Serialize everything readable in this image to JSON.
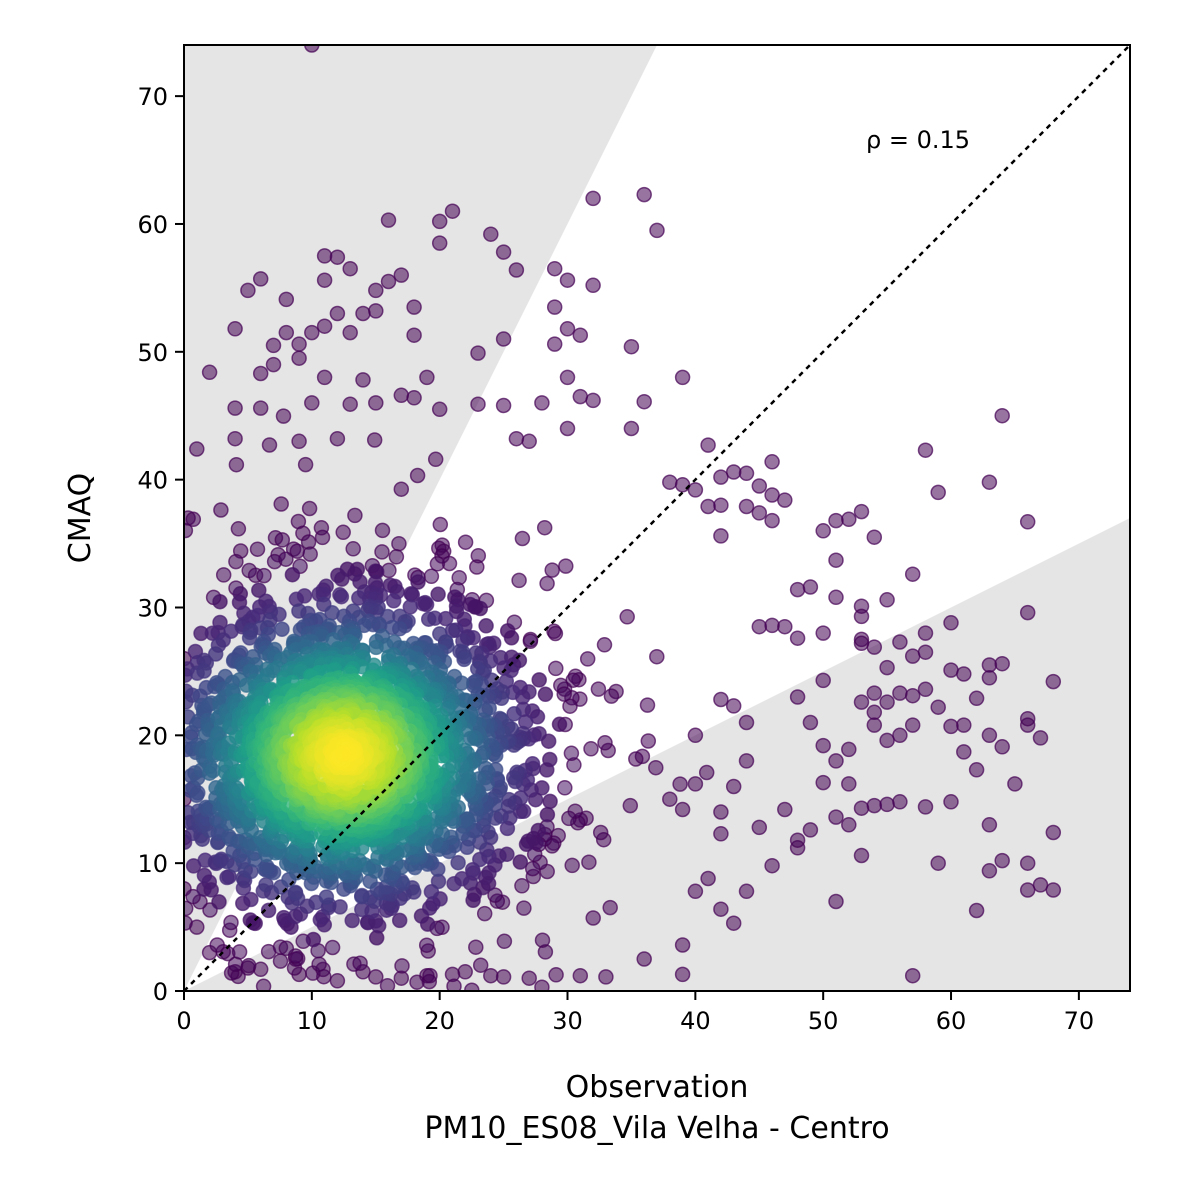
{
  "chart_data": {
    "type": "scatter",
    "xlabel": "Observation",
    "xlabel_sub": "PM10_ES08_Vila Velha - Centro",
    "ylabel": "CMAQ",
    "annotation": "ρ = 0.15",
    "xlim": [
      0,
      74
    ],
    "ylim": [
      0,
      74
    ],
    "xticks": [
      "0",
      "10",
      "20",
      "30",
      "40",
      "50",
      "60",
      "70"
    ],
    "yticks": [
      "0",
      "10",
      "20",
      "30",
      "40",
      "50",
      "60",
      "70"
    ],
    "reference_line": "1:1",
    "shaded_regions": "factor-of-2 band outside, grey",
    "colormap": "viridis (point density)",
    "grid": false,
    "points_outlier": [
      [
        10,
        74
      ],
      [
        36,
        62.3
      ],
      [
        32,
        62
      ],
      [
        37,
        59.5
      ],
      [
        21,
        61
      ],
      [
        20,
        60.2
      ],
      [
        20,
        58.5
      ],
      [
        16,
        60.3
      ],
      [
        24,
        59.2
      ],
      [
        25,
        57.8
      ],
      [
        11,
        57.5
      ],
      [
        12,
        57.4
      ],
      [
        13,
        56.5
      ],
      [
        6,
        55.7
      ],
      [
        5,
        54.8
      ],
      [
        11,
        55.6
      ],
      [
        17,
        56
      ],
      [
        16,
        55.5
      ],
      [
        15,
        54.8
      ],
      [
        26,
        56.4
      ],
      [
        29,
        56.5
      ],
      [
        30,
        55.6
      ],
      [
        32,
        55.2
      ],
      [
        8,
        54.1
      ],
      [
        18,
        53.5
      ],
      [
        12,
        53
      ],
      [
        14,
        53
      ],
      [
        15,
        53.2
      ],
      [
        29,
        53.5
      ],
      [
        4,
        51.8
      ],
      [
        8,
        51.5
      ],
      [
        10,
        51.5
      ],
      [
        11,
        52
      ],
      [
        9,
        50.6
      ],
      [
        7,
        50.5
      ],
      [
        13,
        51.5
      ],
      [
        18,
        51.3
      ],
      [
        30,
        51.8
      ],
      [
        31,
        51.3
      ],
      [
        25,
        51
      ],
      [
        29,
        50.6
      ],
      [
        35,
        50.4
      ],
      [
        2,
        48.4
      ],
      [
        6,
        48.3
      ],
      [
        7,
        49
      ],
      [
        9,
        49.5
      ],
      [
        11,
        48
      ],
      [
        23,
        49.9
      ],
      [
        30,
        48
      ],
      [
        39,
        48
      ],
      [
        14,
        47.8
      ],
      [
        19,
        48
      ],
      [
        31,
        46.5
      ],
      [
        32,
        46.2
      ],
      [
        36,
        46.1
      ],
      [
        4,
        45.6
      ],
      [
        6,
        45.6
      ],
      [
        10,
        46
      ],
      [
        13,
        45.9
      ],
      [
        15,
        46
      ],
      [
        17,
        46.6
      ],
      [
        18,
        46.4
      ],
      [
        20,
        45.5
      ],
      [
        23,
        45.9
      ],
      [
        25,
        45.8
      ],
      [
        28,
        46
      ],
      [
        35,
        44
      ],
      [
        1,
        42.4
      ],
      [
        4,
        43.2
      ],
      [
        9,
        43
      ],
      [
        12,
        43.2
      ],
      [
        26,
        43.2
      ],
      [
        27,
        43
      ],
      [
        30,
        44
      ],
      [
        39,
        39.6
      ],
      [
        41,
        42.7
      ],
      [
        44,
        40.5
      ],
      [
        46,
        41.4
      ],
      [
        45,
        39.5
      ],
      [
        42,
        40.2
      ],
      [
        43,
        40.6
      ],
      [
        40,
        39.2
      ],
      [
        38,
        39.8
      ],
      [
        41,
        37.9
      ],
      [
        42,
        35.6
      ],
      [
        42,
        38
      ],
      [
        44,
        37.9
      ],
      [
        45,
        37.4
      ],
      [
        46,
        38.8
      ],
      [
        47,
        38.4
      ],
      [
        46,
        36.8
      ],
      [
        50,
        36
      ],
      [
        52,
        36.9
      ],
      [
        53,
        37.5
      ],
      [
        51,
        36.8
      ],
      [
        54,
        35.5
      ],
      [
        51,
        33.7
      ],
      [
        57,
        32.6
      ],
      [
        49,
        31.6
      ],
      [
        48,
        31.4
      ],
      [
        51,
        30.8
      ],
      [
        55,
        30.6
      ],
      [
        53,
        30.1
      ],
      [
        53,
        29.3
      ],
      [
        46,
        28.6
      ],
      [
        45,
        28.5
      ],
      [
        47,
        28.5
      ],
      [
        48,
        27.6
      ],
      [
        50,
        28
      ],
      [
        53,
        27.5
      ],
      [
        53,
        27.2
      ],
      [
        54,
        26.9
      ],
      [
        56,
        27.3
      ],
      [
        58,
        28
      ],
      [
        60,
        28.8
      ],
      [
        57,
        26.2
      ],
      [
        58,
        26.5
      ],
      [
        61,
        24.8
      ],
      [
        62,
        22.9
      ],
      [
        60,
        25.1
      ],
      [
        63,
        25.5
      ],
      [
        64,
        25.6
      ],
      [
        63,
        24.5
      ],
      [
        68,
        24.2
      ],
      [
        55,
        25.3
      ],
      [
        54,
        23.3
      ],
      [
        56,
        23.3
      ],
      [
        55,
        22.6
      ],
      [
        57,
        23.1
      ],
      [
        53,
        22.6
      ],
      [
        54,
        21.8
      ],
      [
        57,
        20.8
      ],
      [
        54,
        20.8
      ],
      [
        55,
        19.6
      ],
      [
        56,
        20
      ],
      [
        58,
        23.6
      ],
      [
        59,
        22.2
      ],
      [
        60,
        20.7
      ],
      [
        61,
        20.8
      ],
      [
        61,
        18.7
      ],
      [
        62,
        17.3
      ],
      [
        63,
        20
      ],
      [
        64,
        19.1
      ],
      [
        65,
        16.2
      ],
      [
        66,
        21.3
      ],
      [
        66,
        20.8
      ],
      [
        67,
        19.8
      ],
      [
        68,
        12.4
      ],
      [
        66,
        10
      ],
      [
        67,
        8.3
      ],
      [
        66,
        7.9
      ],
      [
        68,
        7.9
      ],
      [
        64,
        10.2
      ],
      [
        63,
        9.4
      ],
      [
        63,
        13
      ],
      [
        62,
        6.3
      ],
      [
        59,
        10
      ],
      [
        58,
        14.4
      ],
      [
        60,
        14.8
      ],
      [
        56,
        14.8
      ],
      [
        55,
        14.6
      ],
      [
        54,
        14.5
      ],
      [
        53,
        14.3
      ],
      [
        52,
        13
      ],
      [
        51,
        13.6
      ],
      [
        53,
        10.6
      ],
      [
        51,
        7
      ],
      [
        57,
        1.2
      ],
      [
        52,
        16.2
      ],
      [
        50,
        19.2
      ],
      [
        51,
        18
      ],
      [
        52,
        18.9
      ],
      [
        49,
        21
      ],
      [
        48,
        23
      ],
      [
        50,
        24.3
      ],
      [
        59,
        39
      ],
      [
        58,
        42.3
      ],
      [
        63,
        39.8
      ],
      [
        64,
        45
      ],
      [
        66,
        36.7
      ],
      [
        66,
        29.6
      ],
      [
        12,
        0.8
      ],
      [
        31,
        1.2
      ],
      [
        33,
        1.1
      ],
      [
        36,
        2.5
      ],
      [
        39,
        1.3
      ],
      [
        39,
        3.6
      ],
      [
        43,
        5.3
      ],
      [
        42,
        6.4
      ],
      [
        40,
        7.8
      ],
      [
        41,
        8.8
      ],
      [
        44,
        7.8
      ],
      [
        46,
        9.8
      ],
      [
        48,
        11.2
      ],
      [
        48,
        11.8
      ],
      [
        49,
        12.6
      ],
      [
        47,
        14.2
      ],
      [
        50,
        16.3
      ],
      [
        45,
        12.8
      ],
      [
        42,
        12.3
      ],
      [
        42,
        14
      ],
      [
        43,
        16
      ],
      [
        44,
        18
      ],
      [
        40,
        16.2
      ],
      [
        38,
        15
      ],
      [
        39,
        14.2
      ],
      [
        40,
        20
      ],
      [
        42,
        22.8
      ],
      [
        43,
        22.3
      ],
      [
        44,
        21
      ],
      [
        28,
        0.3
      ],
      [
        27,
        1
      ],
      [
        25,
        1.1
      ],
      [
        24,
        1.2
      ],
      [
        22,
        1.5
      ],
      [
        21,
        1.3
      ],
      [
        19,
        1.2
      ],
      [
        17,
        1
      ],
      [
        15,
        1.1
      ],
      [
        14,
        1.5
      ],
      [
        9,
        1.3
      ],
      [
        6,
        1.7
      ],
      [
        5,
        1.8
      ],
      [
        4,
        1.5
      ],
      [
        2,
        3
      ],
      [
        1,
        5
      ],
      [
        0,
        8
      ],
      [
        0,
        12
      ],
      [
        0,
        15
      ],
      [
        0,
        26
      ]
    ],
    "points_cluster_summary": {
      "density_peak": [
        12.5,
        18.5
      ],
      "core_spread": [
        6,
        5
      ],
      "main_range_x": [
        0,
        45
      ],
      "main_range_y": [
        0,
        45
      ]
    }
  }
}
